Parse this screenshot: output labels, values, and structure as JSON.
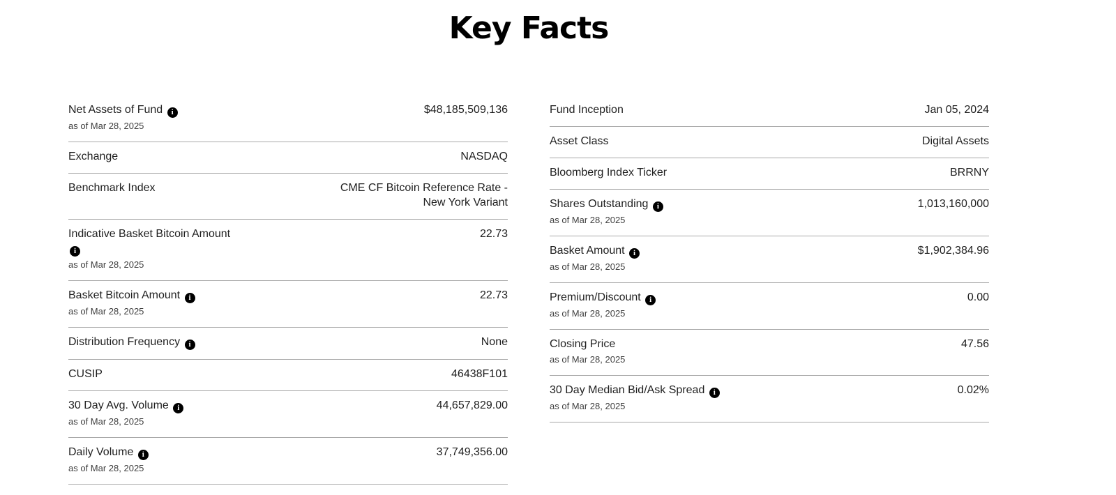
{
  "page": {
    "title": "Key Facts"
  },
  "colors": {
    "text": "#1f1f1f",
    "subtext": "#3f3f3f",
    "divider": "#a8a8a8",
    "info_bg": "#000000",
    "info_fg": "#ffffff",
    "page_bg": "#ffffff"
  },
  "icons": {
    "info_glyph": "i",
    "info_name": "info-icon"
  },
  "facts": {
    "left": [
      {
        "label": "Net Assets of Fund",
        "info": true,
        "info_break": false,
        "asof": "as of Mar 28, 2025",
        "value": "$48,185,509,136"
      },
      {
        "label": "Exchange",
        "info": false,
        "info_break": false,
        "asof": null,
        "value": "NASDAQ"
      },
      {
        "label": "Benchmark Index",
        "info": false,
        "info_break": false,
        "asof": null,
        "value": "CME CF Bitcoin Reference Rate - New York Variant"
      },
      {
        "label": "Indicative Basket Bitcoin Amount",
        "info": true,
        "info_break": true,
        "asof": "as of Mar 28, 2025",
        "value": "22.73"
      },
      {
        "label": "Basket Bitcoin Amount",
        "info": true,
        "info_break": false,
        "asof": "as of Mar 28, 2025",
        "value": "22.73"
      },
      {
        "label": "Distribution Frequency",
        "info": true,
        "info_break": false,
        "asof": null,
        "value": "None"
      },
      {
        "label": "CUSIP",
        "info": false,
        "info_break": false,
        "asof": null,
        "value": "46438F101"
      },
      {
        "label": "30 Day Avg. Volume",
        "info": true,
        "info_break": false,
        "asof": "as of Mar 28, 2025",
        "value": "44,657,829.00"
      },
      {
        "label": "Daily Volume",
        "info": true,
        "info_break": false,
        "asof": "as of Mar 28, 2025",
        "value": "37,749,356.00"
      }
    ],
    "right": [
      {
        "label": "Fund Inception",
        "info": false,
        "info_break": false,
        "asof": null,
        "value": "Jan 05, 2024"
      },
      {
        "label": "Asset Class",
        "info": false,
        "info_break": false,
        "asof": null,
        "value": "Digital Assets"
      },
      {
        "label": "Bloomberg Index Ticker",
        "info": false,
        "info_break": false,
        "asof": null,
        "value": "BRRNY"
      },
      {
        "label": "Shares Outstanding",
        "info": true,
        "info_break": false,
        "asof": "as of Mar 28, 2025",
        "value": "1,013,160,000"
      },
      {
        "label": "Basket Amount",
        "info": true,
        "info_break": false,
        "asof": "as of Mar 28, 2025",
        "value": "$1,902,384.96"
      },
      {
        "label": "Premium/Discount",
        "info": true,
        "info_break": false,
        "asof": "as of Mar 28, 2025",
        "value": "0.00"
      },
      {
        "label": "Closing Price",
        "info": false,
        "info_break": false,
        "asof": "as of Mar 28, 2025",
        "value": "47.56"
      },
      {
        "label": "30 Day Median Bid/Ask Spread",
        "info": true,
        "info_break": false,
        "asof": "as of Mar 28, 2025",
        "value": "0.02%"
      }
    ]
  }
}
